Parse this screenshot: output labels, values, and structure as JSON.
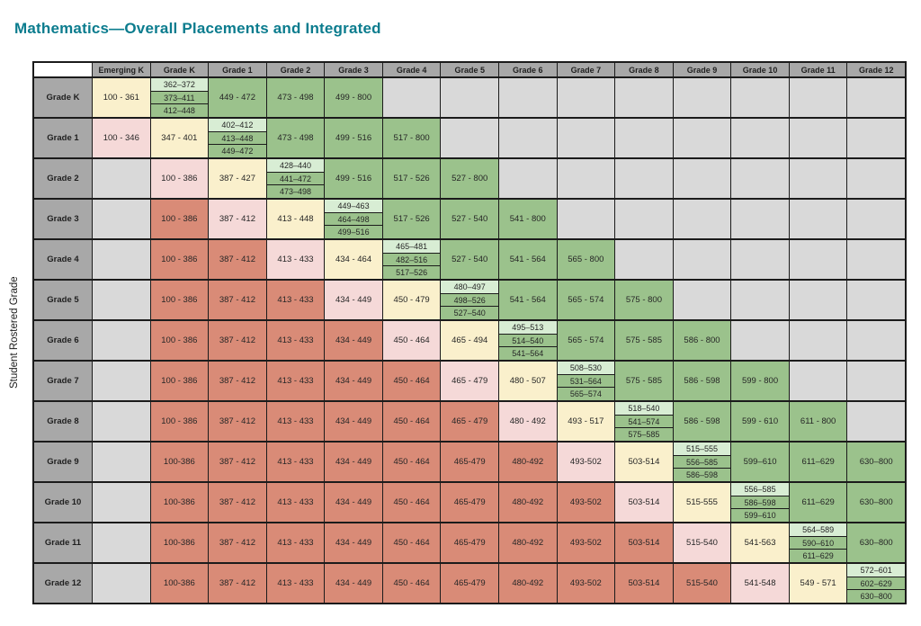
{
  "title": "Mathematics—Overall Placements and Integrated",
  "y_axis_label": "Student Rostered Grade",
  "colors": {
    "teal": "#0B7C8E",
    "border": "#1b1b1b",
    "hdr": "#A8A8A8",
    "na": "#D9D9D9",
    "red": "#D98B77",
    "pink": "#F5D9D8",
    "yellow": "#FAF0CC",
    "green": "#9BC28C",
    "mint": "#D8EDD4"
  },
  "table": {
    "columns": [
      "Emerging K",
      "Grade K",
      "Grade 1",
      "Grade 2",
      "Grade 3",
      "Grade 4",
      "Grade 5",
      "Grade 6",
      "Grade 7",
      "Grade 8",
      "Grade 9",
      "Grade 10",
      "Grade 11",
      "Grade 12"
    ],
    "rows": [
      {
        "label": "Grade K",
        "cells": [
          {
            "t": "100 - 361",
            "c": "yellow"
          },
          {
            "split": [
              "362–372",
              "373–411",
              "412–448"
            ]
          },
          {
            "t": "449 - 472",
            "c": "green"
          },
          {
            "t": "473 - 498",
            "c": "green"
          },
          {
            "t": "499 - 800",
            "c": "green"
          },
          {
            "c": "na"
          },
          {
            "c": "na"
          },
          {
            "c": "na"
          },
          {
            "c": "na"
          },
          {
            "c": "na"
          },
          {
            "c": "na"
          },
          {
            "c": "na"
          },
          {
            "c": "na"
          },
          {
            "c": "na"
          }
        ]
      },
      {
        "label": "Grade 1",
        "cells": [
          {
            "t": "100 - 346",
            "c": "pink"
          },
          {
            "t": "347 - 401",
            "c": "yellow"
          },
          {
            "split": [
              "402–412",
              "413–448",
              "449–472"
            ]
          },
          {
            "t": "473 - 498",
            "c": "green"
          },
          {
            "t": "499 - 516",
            "c": "green"
          },
          {
            "t": "517 - 800",
            "c": "green"
          },
          {
            "c": "na"
          },
          {
            "c": "na"
          },
          {
            "c": "na"
          },
          {
            "c": "na"
          },
          {
            "c": "na"
          },
          {
            "c": "na"
          },
          {
            "c": "na"
          },
          {
            "c": "na"
          }
        ]
      },
      {
        "label": "Grade 2",
        "cells": [
          {
            "c": "na"
          },
          {
            "t": "100 - 386",
            "c": "pink"
          },
          {
            "t": "387 - 427",
            "c": "yellow"
          },
          {
            "split": [
              "428–440",
              "441–472",
              "473–498"
            ]
          },
          {
            "t": "499 - 516",
            "c": "green"
          },
          {
            "t": "517 - 526",
            "c": "green"
          },
          {
            "t": "527 - 800",
            "c": "green"
          },
          {
            "c": "na"
          },
          {
            "c": "na"
          },
          {
            "c": "na"
          },
          {
            "c": "na"
          },
          {
            "c": "na"
          },
          {
            "c": "na"
          },
          {
            "c": "na"
          }
        ]
      },
      {
        "label": "Grade 3",
        "cells": [
          {
            "c": "na"
          },
          {
            "t": "100 - 386",
            "c": "red"
          },
          {
            "t": "387 - 412",
            "c": "pink"
          },
          {
            "t": "413 - 448",
            "c": "yellow"
          },
          {
            "split": [
              "449–463",
              "464–498",
              "499–516"
            ]
          },
          {
            "t": "517 - 526",
            "c": "green"
          },
          {
            "t": "527 - 540",
            "c": "green"
          },
          {
            "t": "541 - 800",
            "c": "green"
          },
          {
            "c": "na"
          },
          {
            "c": "na"
          },
          {
            "c": "na"
          },
          {
            "c": "na"
          },
          {
            "c": "na"
          },
          {
            "c": "na"
          }
        ]
      },
      {
        "label": "Grade 4",
        "cells": [
          {
            "c": "na"
          },
          {
            "t": "100 - 386",
            "c": "red"
          },
          {
            "t": "387 - 412",
            "c": "red"
          },
          {
            "t": "413 - 433",
            "c": "pink"
          },
          {
            "t": "434 - 464",
            "c": "yellow"
          },
          {
            "split": [
              "465–481",
              "482–516",
              "517–526"
            ]
          },
          {
            "t": "527 - 540",
            "c": "green"
          },
          {
            "t": "541 - 564",
            "c": "green"
          },
          {
            "t": "565 - 800",
            "c": "green"
          },
          {
            "c": "na"
          },
          {
            "c": "na"
          },
          {
            "c": "na"
          },
          {
            "c": "na"
          },
          {
            "c": "na"
          }
        ]
      },
      {
        "label": "Grade 5",
        "cells": [
          {
            "c": "na"
          },
          {
            "t": "100 - 386",
            "c": "red"
          },
          {
            "t": "387 - 412",
            "c": "red"
          },
          {
            "t": "413 - 433",
            "c": "red"
          },
          {
            "t": "434 - 449",
            "c": "pink"
          },
          {
            "t": "450 - 479",
            "c": "yellow"
          },
          {
            "split": [
              "480–497",
              "498–526",
              "527–540"
            ]
          },
          {
            "t": "541 - 564",
            "c": "green"
          },
          {
            "t": "565 - 574",
            "c": "green"
          },
          {
            "t": "575 - 800",
            "c": "green"
          },
          {
            "c": "na"
          },
          {
            "c": "na"
          },
          {
            "c": "na"
          },
          {
            "c": "na"
          }
        ]
      },
      {
        "label": "Grade 6",
        "cells": [
          {
            "c": "na"
          },
          {
            "t": "100 - 386",
            "c": "red"
          },
          {
            "t": "387 - 412",
            "c": "red"
          },
          {
            "t": "413 - 433",
            "c": "red"
          },
          {
            "t": "434 - 449",
            "c": "red"
          },
          {
            "t": "450 - 464",
            "c": "pink"
          },
          {
            "t": "465 - 494",
            "c": "yellow"
          },
          {
            "split": [
              "495–513",
              "514–540",
              "541–564"
            ]
          },
          {
            "t": "565 - 574",
            "c": "green"
          },
          {
            "t": "575 - 585",
            "c": "green"
          },
          {
            "t": "586 - 800",
            "c": "green"
          },
          {
            "c": "na"
          },
          {
            "c": "na"
          },
          {
            "c": "na"
          }
        ]
      },
      {
        "label": "Grade 7",
        "cells": [
          {
            "c": "na"
          },
          {
            "t": "100 - 386",
            "c": "red"
          },
          {
            "t": "387 - 412",
            "c": "red"
          },
          {
            "t": "413 - 433",
            "c": "red"
          },
          {
            "t": "434 - 449",
            "c": "red"
          },
          {
            "t": "450 - 464",
            "c": "red"
          },
          {
            "t": "465 - 479",
            "c": "pink"
          },
          {
            "t": "480 - 507",
            "c": "yellow"
          },
          {
            "split": [
              "508–530",
              "531–564",
              "565–574"
            ]
          },
          {
            "t": "575 - 585",
            "c": "green"
          },
          {
            "t": "586 - 598",
            "c": "green"
          },
          {
            "t": "599 - 800",
            "c": "green"
          },
          {
            "c": "na"
          },
          {
            "c": "na"
          }
        ]
      },
      {
        "label": "Grade 8",
        "cells": [
          {
            "c": "na"
          },
          {
            "t": "100 - 386",
            "c": "red"
          },
          {
            "t": "387 - 412",
            "c": "red"
          },
          {
            "t": "413 - 433",
            "c": "red"
          },
          {
            "t": "434 - 449",
            "c": "red"
          },
          {
            "t": "450 - 464",
            "c": "red"
          },
          {
            "t": "465 - 479",
            "c": "red"
          },
          {
            "t": "480 - 492",
            "c": "pink"
          },
          {
            "t": "493 - 517",
            "c": "yellow"
          },
          {
            "split": [
              "518–540",
              "541–574",
              "575–585"
            ]
          },
          {
            "t": "586 - 598",
            "c": "green"
          },
          {
            "t": "599 - 610",
            "c": "green"
          },
          {
            "t": "611 - 800",
            "c": "green"
          },
          {
            "c": "na"
          }
        ]
      },
      {
        "label": "Grade 9",
        "cells": [
          {
            "c": "na"
          },
          {
            "t": "100-386",
            "c": "red"
          },
          {
            "t": "387 - 412",
            "c": "red"
          },
          {
            "t": "413 - 433",
            "c": "red"
          },
          {
            "t": "434 - 449",
            "c": "red"
          },
          {
            "t": "450 - 464",
            "c": "red"
          },
          {
            "t": "465-479",
            "c": "red"
          },
          {
            "t": "480-492",
            "c": "red"
          },
          {
            "t": "493-502",
            "c": "pink"
          },
          {
            "t": "503-514",
            "c": "yellow"
          },
          {
            "split": [
              "515–555",
              "556–585",
              "586–598"
            ]
          },
          {
            "t": "599–610",
            "c": "green"
          },
          {
            "t": "611–629",
            "c": "green"
          },
          {
            "t": "630–800",
            "c": "green"
          }
        ]
      },
      {
        "label": "Grade 10",
        "cells": [
          {
            "c": "na"
          },
          {
            "t": "100-386",
            "c": "red"
          },
          {
            "t": "387 - 412",
            "c": "red"
          },
          {
            "t": "413 - 433",
            "c": "red"
          },
          {
            "t": "434 - 449",
            "c": "red"
          },
          {
            "t": "450 - 464",
            "c": "red"
          },
          {
            "t": "465-479",
            "c": "red"
          },
          {
            "t": "480-492",
            "c": "red"
          },
          {
            "t": "493-502",
            "c": "red"
          },
          {
            "t": "503-514",
            "c": "pink"
          },
          {
            "t": "515-555",
            "c": "yellow"
          },
          {
            "split": [
              "556–585",
              "586–598",
              "599–610"
            ]
          },
          {
            "t": "611–629",
            "c": "green"
          },
          {
            "t": "630–800",
            "c": "green"
          }
        ]
      },
      {
        "label": "Grade 11",
        "cells": [
          {
            "c": "na"
          },
          {
            "t": "100-386",
            "c": "red"
          },
          {
            "t": "387 - 412",
            "c": "red"
          },
          {
            "t": "413 - 433",
            "c": "red"
          },
          {
            "t": "434 - 449",
            "c": "red"
          },
          {
            "t": "450 - 464",
            "c": "red"
          },
          {
            "t": "465-479",
            "c": "red"
          },
          {
            "t": "480-492",
            "c": "red"
          },
          {
            "t": "493-502",
            "c": "red"
          },
          {
            "t": "503-514",
            "c": "red"
          },
          {
            "t": "515-540",
            "c": "pink"
          },
          {
            "t": "541-563",
            "c": "yellow"
          },
          {
            "split": [
              "564–589",
              "590–610",
              "611–629"
            ]
          },
          {
            "t": "630–800",
            "c": "green"
          }
        ]
      },
      {
        "label": "Grade 12",
        "cells": [
          {
            "c": "na"
          },
          {
            "t": "100-386",
            "c": "red"
          },
          {
            "t": "387 - 412",
            "c": "red"
          },
          {
            "t": "413 - 433",
            "c": "red"
          },
          {
            "t": "434 - 449",
            "c": "red"
          },
          {
            "t": "450 - 464",
            "c": "red"
          },
          {
            "t": "465-479",
            "c": "red"
          },
          {
            "t": "480-492",
            "c": "red"
          },
          {
            "t": "493-502",
            "c": "red"
          },
          {
            "t": "503-514",
            "c": "red"
          },
          {
            "t": "515-540",
            "c": "red"
          },
          {
            "t": "541-548",
            "c": "pink"
          },
          {
            "t": "549 - 571",
            "c": "yellow"
          },
          {
            "split": [
              "572–601",
              "602–629",
              "630–800"
            ]
          }
        ]
      }
    ]
  }
}
